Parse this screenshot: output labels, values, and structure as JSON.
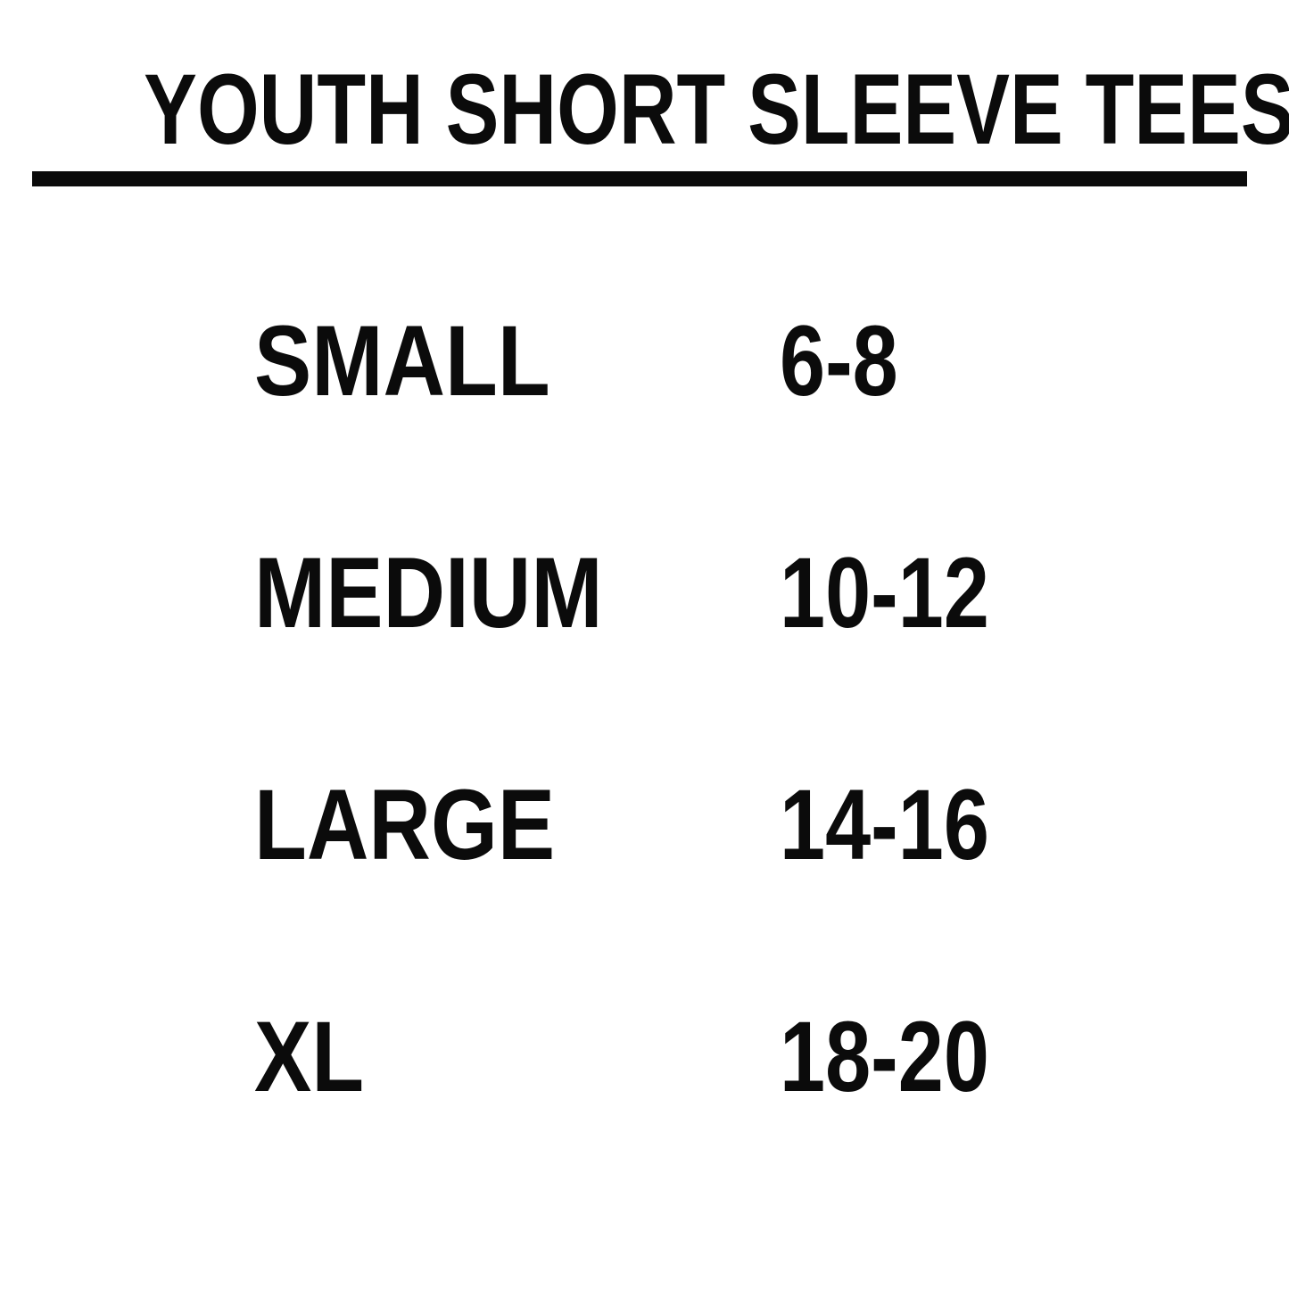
{
  "title": "YOUTH SHORT SLEEVE TEES",
  "colors": {
    "background": "#ffffff",
    "text": "#0b0b0b"
  },
  "size_chart": {
    "rows": [
      {
        "label": "SMALL",
        "range": "6-8"
      },
      {
        "label": "MEDIUM",
        "range": "10-12"
      },
      {
        "label": "LARGE",
        "range": "14-16"
      },
      {
        "label": "XL",
        "range": "18-20"
      }
    ]
  }
}
